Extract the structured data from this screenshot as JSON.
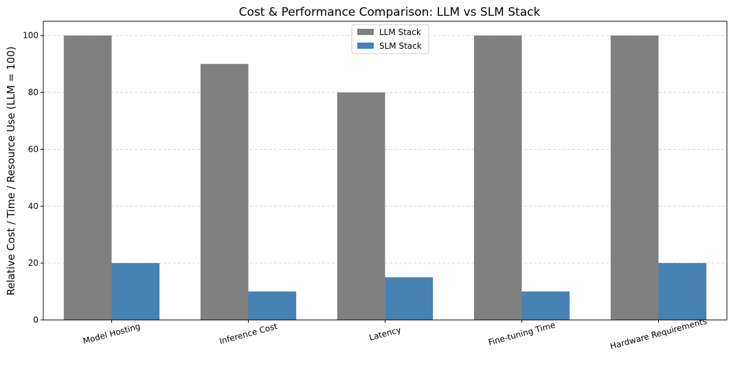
{
  "chart_data": {
    "type": "bar",
    "title": "Cost & Performance Comparison: LLM vs SLM Stack",
    "xlabel": "",
    "ylabel": "Relative Cost / Time / Resource Use (LLM = 100)",
    "categories": [
      "Model Hosting",
      "Inference Cost",
      "Latency",
      "Fine-tuning Time",
      "Hardware Requirements"
    ],
    "series": [
      {
        "name": "LLM Stack",
        "values": [
          100,
          90,
          80,
          100,
          100
        ],
        "color": "#808080"
      },
      {
        "name": "SLM Stack",
        "values": [
          20,
          10,
          15,
          10,
          20
        ],
        "color": "#4682b4"
      }
    ],
    "ylim": [
      0,
      105
    ],
    "yticks": [
      0,
      20,
      40,
      60,
      80,
      100
    ],
    "grid": true,
    "legend_position": "top-center"
  }
}
